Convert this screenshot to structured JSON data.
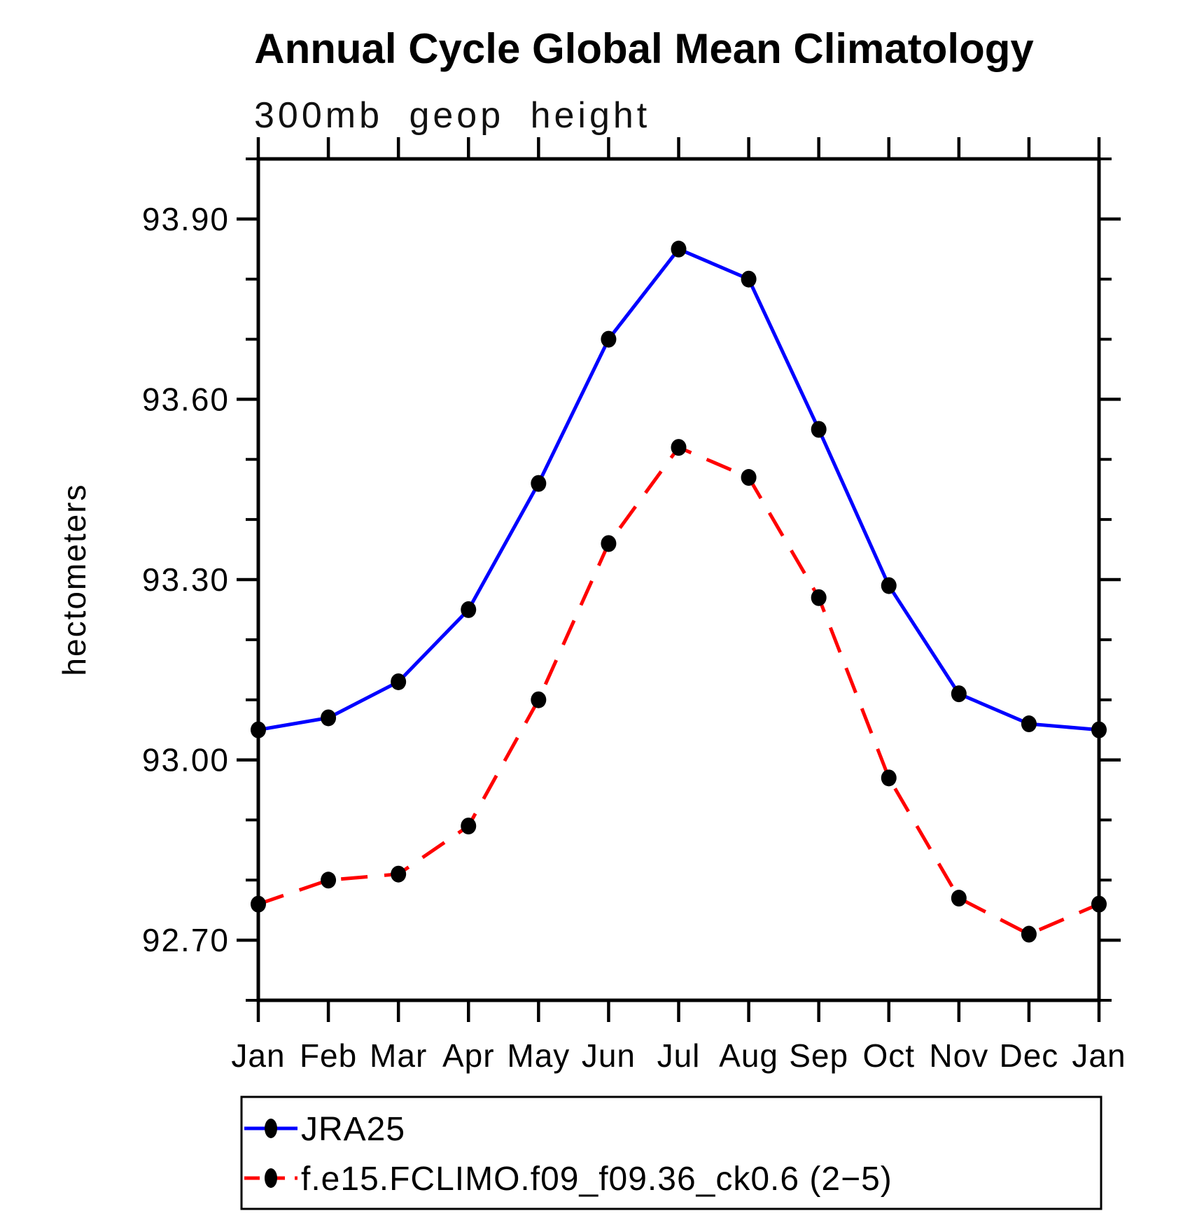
{
  "header": {
    "title": "Annual Cycle Global Mean Climatology",
    "subtitle": "300mb geop height"
  },
  "chart_data": {
    "type": "line",
    "title": "Annual Cycle Global Mean Climatology",
    "subtitle": "300mb geop height",
    "xlabel": "",
    "ylabel": "hectometers",
    "categories": [
      "Jan",
      "Feb",
      "Mar",
      "Apr",
      "May",
      "Jun",
      "Jul",
      "Aug",
      "Sep",
      "Oct",
      "Nov",
      "Dec",
      "Jan"
    ],
    "series": [
      {
        "name": "JRA25",
        "color": "#0000ff",
        "line_style": "solid",
        "marker": "black-filled-ellipse",
        "values": [
          93.05,
          93.07,
          93.13,
          93.25,
          93.46,
          93.7,
          93.85,
          93.8,
          93.55,
          93.29,
          93.11,
          93.06,
          93.05
        ]
      },
      {
        "name": "f.e15.FCLIMO.f09_f09.36_ck0.6 (2−5)",
        "color": "#ff0000",
        "line_style": "dashed",
        "marker": "black-filled-ellipse",
        "values": [
          92.76,
          92.8,
          92.81,
          92.89,
          93.1,
          93.36,
          93.52,
          93.47,
          93.27,
          92.97,
          92.77,
          92.71,
          92.76
        ]
      }
    ],
    "ylim": [
      92.6,
      94.0
    ],
    "ytick_major": [
      92.7,
      93.0,
      93.3,
      93.6,
      93.9
    ],
    "ytick_minor_step": 0.1,
    "ytick_format": "2dp",
    "grid": false,
    "legend_position": "bottom-left",
    "marker_color": "#000000",
    "axis_color": "#000000"
  }
}
